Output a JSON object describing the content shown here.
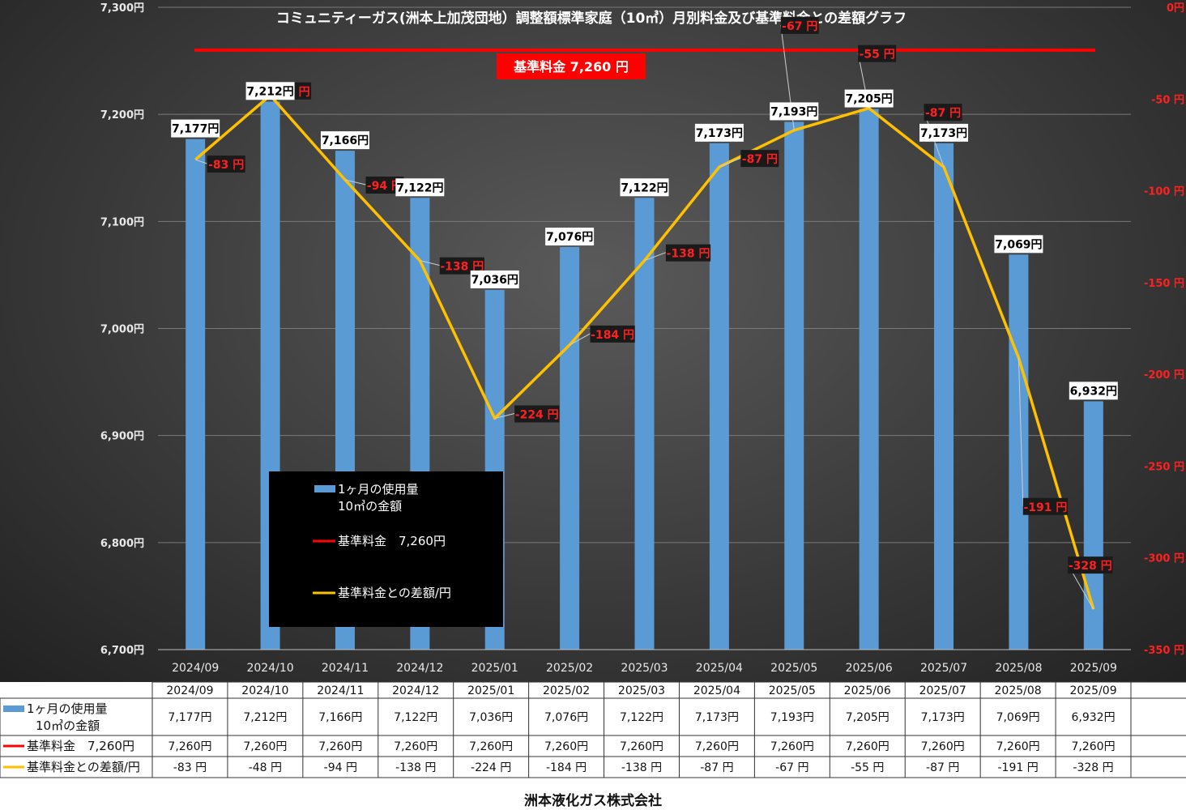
{
  "chart_data": {
    "type": "bar",
    "title": "コミュニティーガス(洲本上加茂団地）調整額標準家庭（10㎥）月別料金及び基準料金との差額グラフ",
    "categories": [
      "2024/09",
      "2024/10",
      "2024/11",
      "2024/12",
      "2025/01",
      "2025/02",
      "2025/03",
      "2025/04",
      "2025/05",
      "2025/06",
      "2025/07",
      "2025/08",
      "2025/09"
    ],
    "ylim": [
      6700,
      7300
    ],
    "y_ticks": [
      6700,
      6800,
      6900,
      7000,
      7100,
      7200,
      7300
    ],
    "y_tick_labels": [
      "6,700円",
      "6,800円",
      "6,900円",
      "7,000円",
      "7,100円",
      "7,200円",
      "7,300円"
    ],
    "y2lim": [
      -350,
      0
    ],
    "y2_ticks": [
      0,
      -50,
      -100,
      -150,
      -200,
      -250,
      -300,
      -350
    ],
    "y2_tick_labels": [
      "0円",
      "-50 円",
      "-100 円",
      "-150 円",
      "-200 円",
      "-250 円",
      "-300 円",
      "-350 円"
    ],
    "series": [
      {
        "name": "1ヶ月の使用量 10㎥の金額",
        "type": "bar",
        "axis": "left",
        "color": "#5b9bd5",
        "values": [
          7177,
          7212,
          7166,
          7122,
          7036,
          7076,
          7122,
          7173,
          7193,
          7205,
          7173,
          7069,
          6932
        ],
        "labels": [
          "7,177円",
          "7,212円",
          "7,166円",
          "7,122円",
          "7,036円",
          "7,076円",
          "7,122円",
          "7,173円",
          "7,193円",
          "7,205円",
          "7,173円",
          "7,069円",
          "6,932円"
        ]
      },
      {
        "name": "基準料金 7,260円",
        "type": "line",
        "axis": "left",
        "color": "#ff0000",
        "values": [
          7260,
          7260,
          7260,
          7260,
          7260,
          7260,
          7260,
          7260,
          7260,
          7260,
          7260,
          7260,
          7260
        ],
        "labels": [
          "7,260円",
          "7,260円",
          "7,260円",
          "7,260円",
          "7,260円",
          "7,260円",
          "7,260円",
          "7,260円",
          "7,260円",
          "7,260円",
          "7,260円",
          "7,260円",
          "7,260円"
        ]
      },
      {
        "name": "基準料金との差額/円",
        "type": "line",
        "axis": "right",
        "color": "#ffc000",
        "values": [
          -83,
          -48,
          -94,
          -138,
          -224,
          -184,
          -138,
          -87,
          -67,
          -55,
          -87,
          -191,
          -328
        ],
        "labels": [
          "-83 円",
          "-48 円",
          "-94 円",
          "-138 円",
          "-224 円",
          "-184 円",
          "-138 円",
          "-87 円",
          "-67 円",
          "-55 円",
          "-87 円",
          "-191 円",
          "-328 円"
        ]
      }
    ],
    "reference_banner": "基準料金  7,260  円",
    "legend": {
      "position": "center-bottom",
      "items": [
        {
          "line1": "1ヶ月の使用量",
          "line2": "10㎥の金額",
          "color": "#5b9bd5",
          "marker": "bar"
        },
        {
          "line1": "基準料金　7,260円",
          "line2": "",
          "color": "#ff0000",
          "marker": "line"
        },
        {
          "line1": "基準料金との差額/円",
          "line2": "",
          "color": "#ffc000",
          "marker": "line"
        }
      ]
    },
    "data_table": {
      "rows": [
        {
          "label1": "1ヶ月の使用量",
          "label2": "10㎥の金額",
          "color": "#5b9bd5",
          "marker": "bar"
        },
        {
          "label1": "基準料金　7,260円",
          "label2": "",
          "color": "#ff0000",
          "marker": "line"
        },
        {
          "label1": "基準料金との差額/円",
          "label2": "",
          "color": "#ffc000",
          "marker": "line"
        }
      ]
    },
    "gridlines": true
  },
  "footer": {
    "company": "洲本液化ガス株式会社"
  },
  "colors": {
    "background_center": "#5a5a5a",
    "background_edge": "#1f1f1f",
    "axis_text": "#e8e8e8",
    "right_axis_text": "#ff2020",
    "diff_label_bg": "#1a1a1a",
    "diff_label_text": "#ff2020",
    "bar_label_bg": "#ffffff",
    "bar_label_text": "#000000"
  }
}
